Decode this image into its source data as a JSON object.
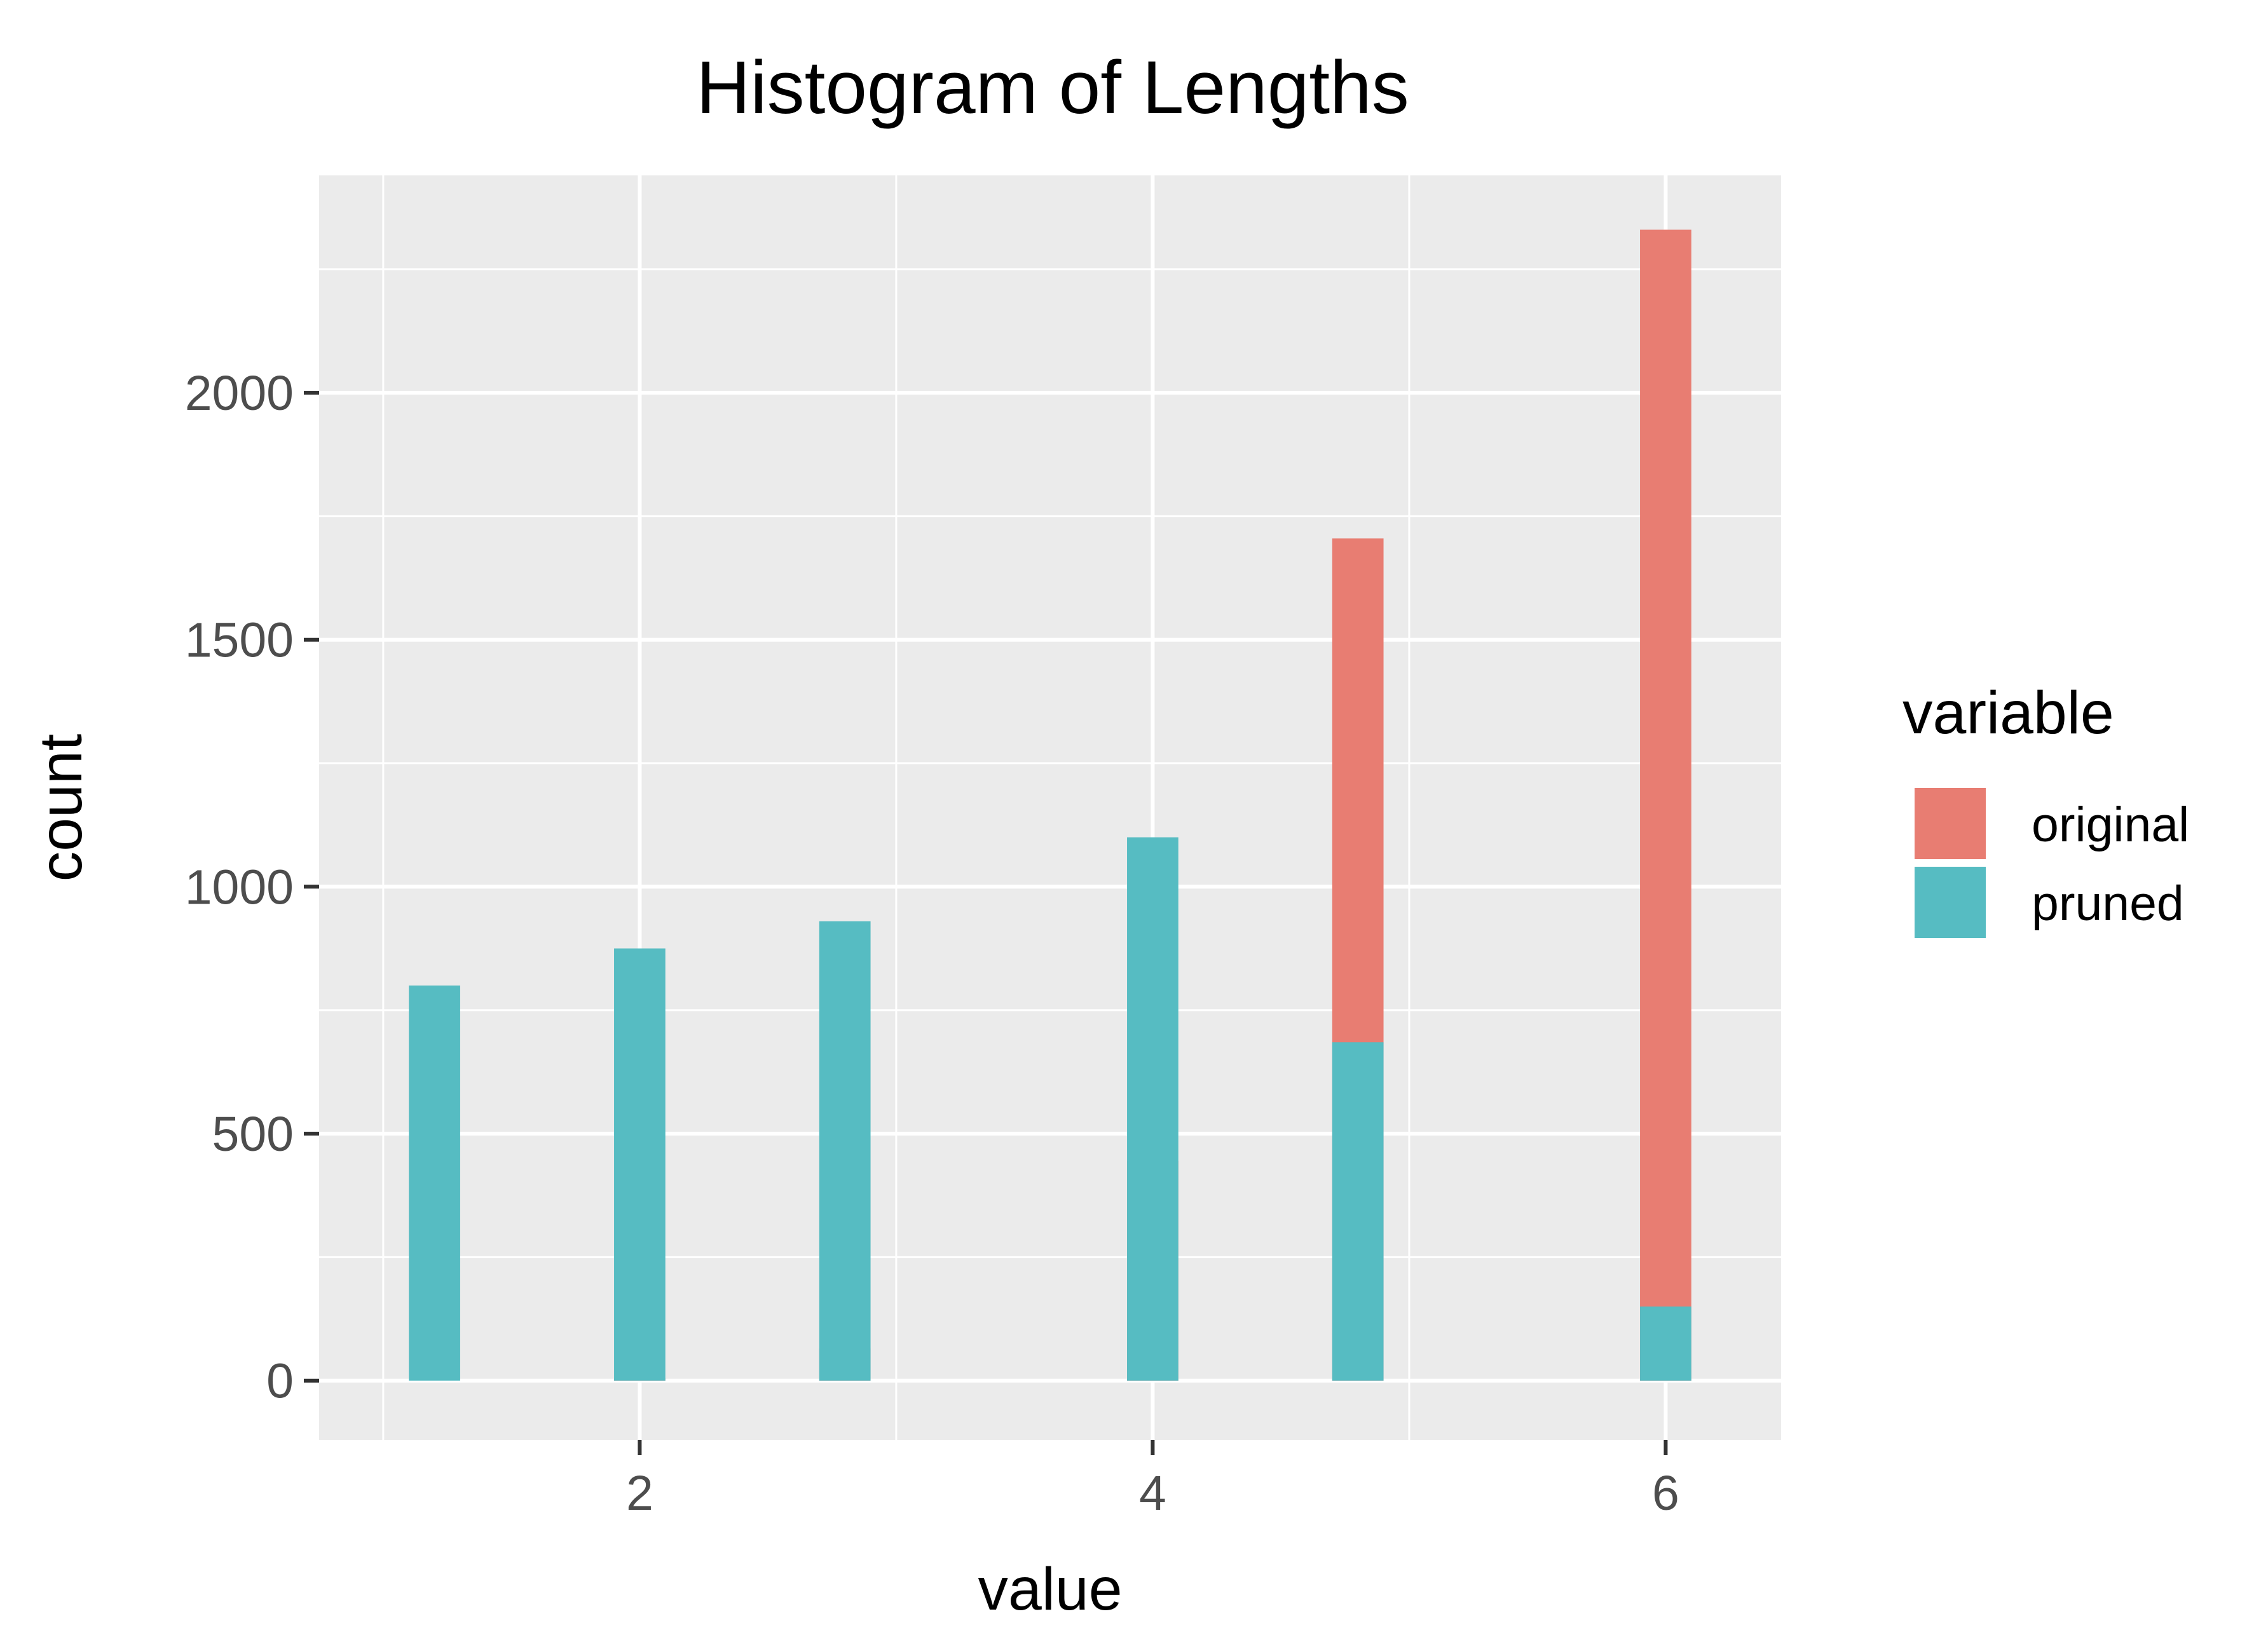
{
  "chart_data": {
    "type": "bar",
    "title": "Histogram of Lengths",
    "xlabel": "value",
    "ylabel": "count",
    "xlim": [
      0.75,
      6.45
    ],
    "ylim": [
      -120,
      2440
    ],
    "xticks": [
      2,
      4,
      6
    ],
    "yticks": [
      0,
      500,
      1000,
      1500,
      2000
    ],
    "x_minor_grid": [
      1,
      3,
      5
    ],
    "y_minor_grid": [
      250,
      750,
      1250,
      1750,
      2250
    ],
    "grid": true,
    "background": "#ebebeb",
    "legend": {
      "title": "variable",
      "position": "right"
    },
    "bar_width": 0.2,
    "series": [
      {
        "name": "original",
        "color": "#e87d72",
        "points": [
          {
            "x": 2,
            "y": 5
          },
          {
            "x": 2.8,
            "y": 65
          },
          {
            "x": 4,
            "y": 445
          },
          {
            "x": 4.8,
            "y": 1705
          },
          {
            "x": 6,
            "y": 2330
          }
        ]
      },
      {
        "name": "pruned",
        "color": "#56bcc2",
        "points": [
          {
            "x": 1.2,
            "y": 800
          },
          {
            "x": 2,
            "y": 875
          },
          {
            "x": 2.8,
            "y": 930
          },
          {
            "x": 4,
            "y": 1100
          },
          {
            "x": 4.8,
            "y": 685
          },
          {
            "x": 6,
            "y": 150
          }
        ]
      }
    ]
  }
}
